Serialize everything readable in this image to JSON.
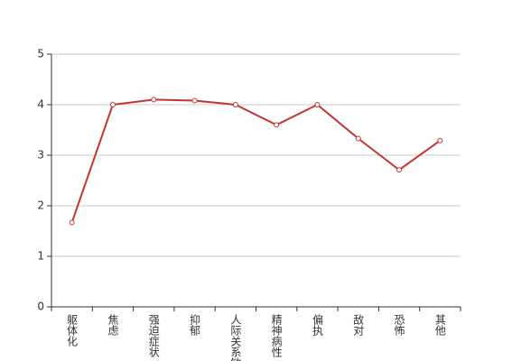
{
  "chart_data": {
    "type": "line",
    "categories": [
      "躯体化",
      "焦虑",
      "强迫症状",
      "抑郁",
      "人际关系敏感",
      "精神病性",
      "偏执",
      "敌对",
      "恐怖",
      "其他"
    ],
    "values": [
      1.67,
      4.0,
      4.1,
      4.08,
      4.0,
      3.6,
      4.0,
      3.33,
      2.71,
      3.29
    ],
    "color": "#c23531",
    "ylim": [
      0,
      5
    ],
    "yticks": [
      0,
      1,
      2,
      3,
      4,
      5
    ],
    "grid": true
  }
}
